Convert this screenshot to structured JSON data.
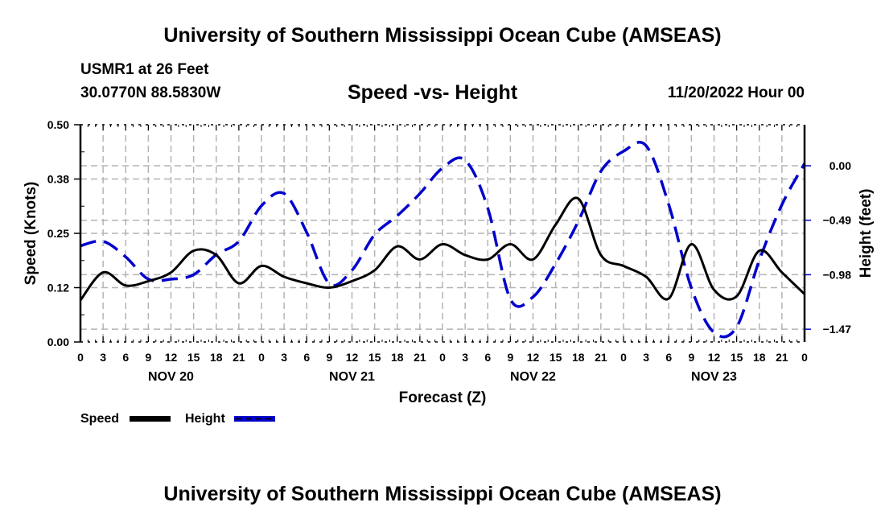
{
  "header": {
    "title": "University of Southern Mississippi Ocean Cube (AMSEAS)",
    "station": "USMR1 at 26 Feet",
    "coords": "30.0770N  88.5830W",
    "subtitle": "Speed -vs- Height",
    "datetime": "11/20/2022 Hour 00"
  },
  "footer": {
    "title": "University of Southern Mississippi Ocean Cube (AMSEAS)"
  },
  "chart_data": {
    "type": "line",
    "title": "Speed -vs- Height",
    "xlabel": "Forecast (Z)",
    "ylabel": "Speed (Knots)",
    "y2label": "Height (feet)",
    "xlim_hours": [
      0,
      96
    ],
    "ylim": [
      0,
      0.5
    ],
    "y2lim": [
      -1.85,
      0.37
    ],
    "grid": true,
    "legend_position": "bottom-left",
    "x_tick_labels": [
      "0",
      "3",
      "6",
      "9",
      "12",
      "15",
      "18",
      "21",
      "0",
      "3",
      "6",
      "9",
      "12",
      "15",
      "18",
      "21",
      "0",
      "3",
      "6",
      "9",
      "12",
      "15",
      "18",
      "21",
      "0",
      "3",
      "6",
      "9",
      "12",
      "15",
      "18",
      "21",
      "0"
    ],
    "date_labels": [
      {
        "label": "NOV 20",
        "hour": 12
      },
      {
        "label": "NOV 21",
        "hour": 36
      },
      {
        "label": "NOV 22",
        "hour": 60
      },
      {
        "label": "NOV 23",
        "hour": 84
      }
    ],
    "y_ticks": [
      "0.00",
      "0.12",
      "0.25",
      "0.38",
      "0.50"
    ],
    "y_tick_values": [
      0,
      0.125,
      0.25,
      0.375,
      0.5
    ],
    "y2_ticks": [
      "0.00",
      "-0.49",
      "-0.98",
      "-1.47"
    ],
    "y2_tick_values": [
      0,
      -0.49,
      -0.98,
      -1.47
    ],
    "x_hours": [
      0,
      3,
      6,
      9,
      12,
      15,
      18,
      21,
      24,
      27,
      30,
      33,
      36,
      39,
      42,
      45,
      48,
      51,
      54,
      57,
      60,
      63,
      66,
      69,
      72,
      75,
      78,
      81,
      84,
      87,
      90,
      93,
      96
    ],
    "series": [
      {
        "name": "Speed",
        "axis": "left",
        "color": "#000000",
        "style": "solid",
        "values": [
          0.096,
          0.16,
          0.13,
          0.14,
          0.16,
          0.21,
          0.2,
          0.135,
          0.175,
          0.15,
          0.135,
          0.125,
          0.14,
          0.165,
          0.22,
          0.19,
          0.225,
          0.2,
          0.19,
          0.225,
          0.19,
          0.27,
          0.33,
          0.2,
          0.175,
          0.15,
          0.1,
          0.225,
          0.12,
          0.105,
          0.21,
          0.16,
          0.11
        ]
      },
      {
        "name": "Height",
        "axis": "left",
        "color": "#0000cc",
        "style": "dashed",
        "values_feet": [
          -0.72,
          -0.68,
          -0.82,
          -1.02,
          -1.02,
          -0.98,
          -0.8,
          -0.68,
          -0.36,
          -0.25,
          -0.6,
          -1.06,
          -0.94,
          -0.62,
          -0.45,
          -0.25,
          -0.02,
          0.05,
          -0.38,
          -1.2,
          -1.18,
          -0.88,
          -0.5,
          -0.05,
          0.13,
          0.18,
          -0.35,
          -1.1,
          -1.5,
          -1.45,
          -0.85,
          -0.35,
          0.02
        ]
      }
    ]
  }
}
